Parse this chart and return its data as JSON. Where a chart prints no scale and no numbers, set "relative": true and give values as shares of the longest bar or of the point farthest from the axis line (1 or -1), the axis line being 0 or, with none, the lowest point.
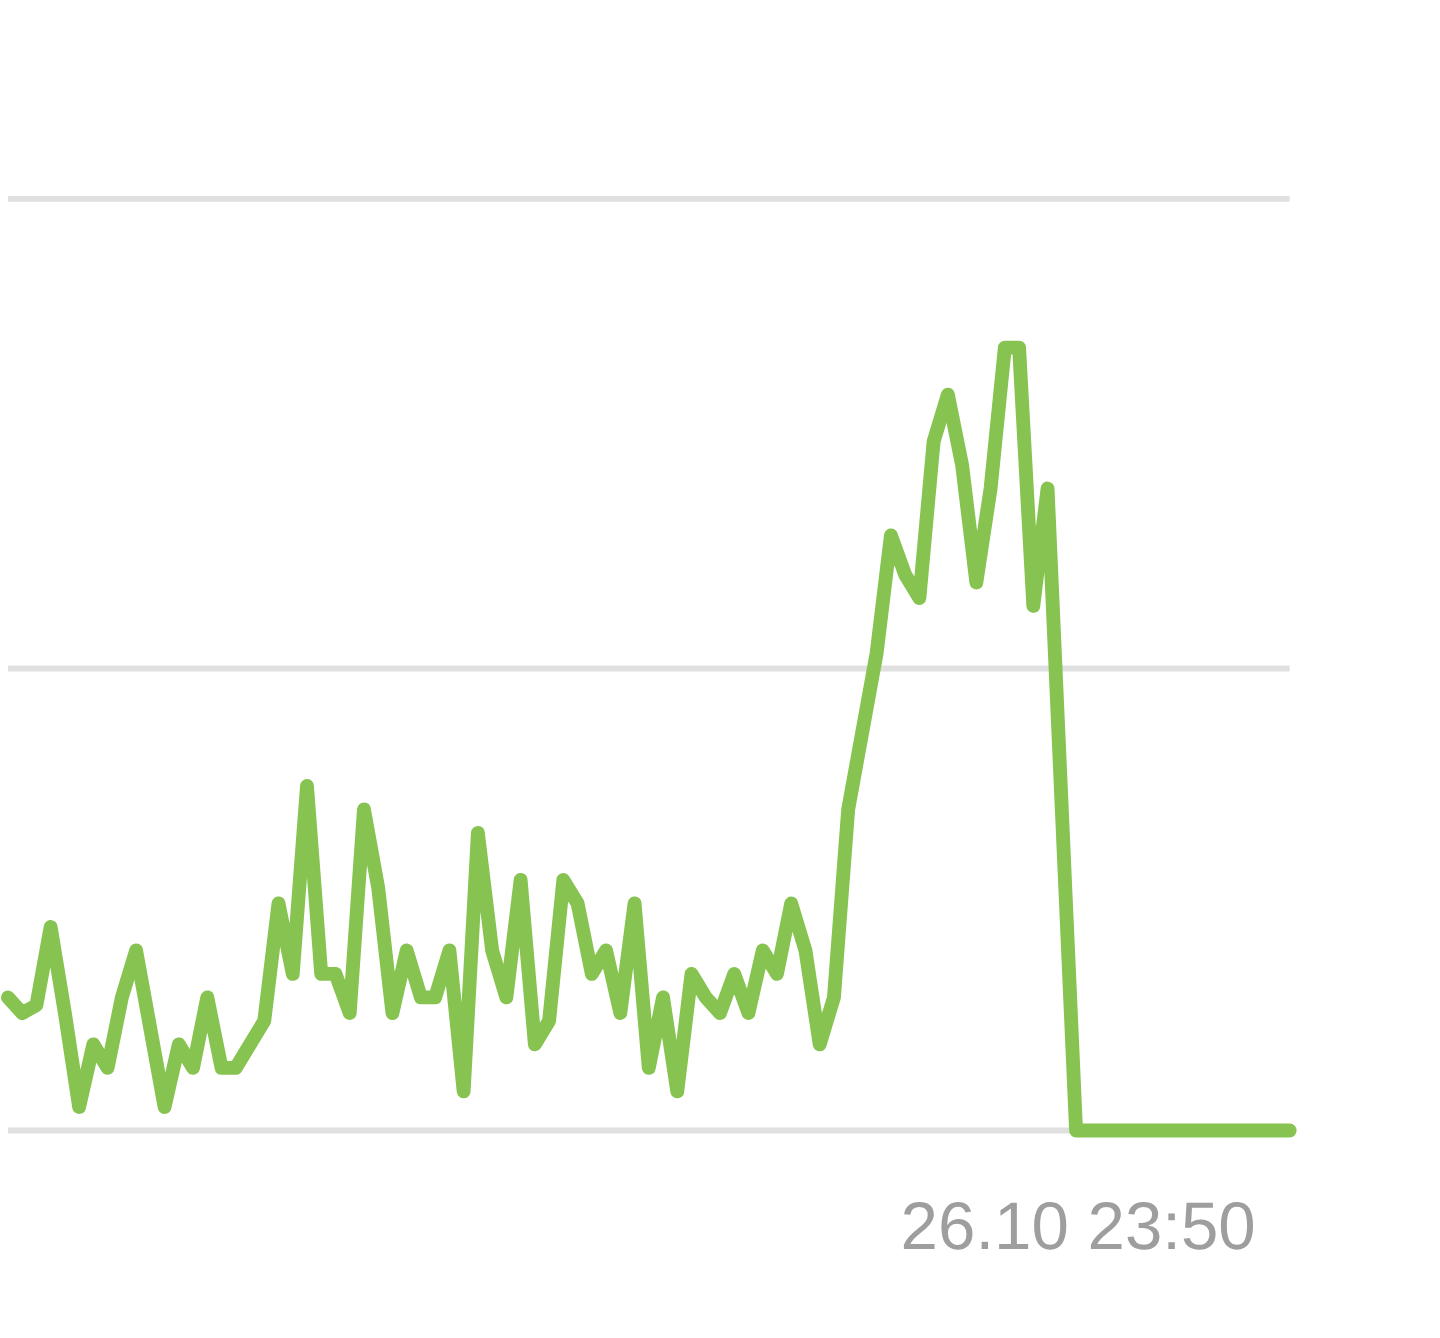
{
  "chart_data": {
    "type": "line",
    "relative": true,
    "marker": "none",
    "line_style": "solid",
    "ref_lines": [
      {
        "axis": "y",
        "value": 0,
        "color": "#e0e0e0"
      },
      {
        "axis": "y",
        "value": 0.59,
        "color": "#e0e0e0"
      },
      {
        "axis": "y",
        "value": 1.19,
        "color": "#e0e0e0"
      }
    ],
    "categories": [
      null,
      null,
      null,
      null,
      null,
      null,
      null,
      null,
      null,
      null,
      null,
      null,
      null,
      null,
      null,
      null,
      null,
      null,
      null,
      null,
      null,
      null,
      null,
      null,
      null,
      null,
      null,
      null,
      null,
      null,
      null,
      null,
      null,
      null,
      null,
      null,
      null,
      null,
      null,
      null,
      null,
      null,
      null,
      null,
      null,
      null,
      null,
      null,
      null,
      null,
      null,
      null,
      null,
      null,
      null,
      null,
      null,
      null,
      null,
      null,
      null,
      null,
      null,
      null,
      null,
      null,
      null,
      null,
      null,
      null,
      null,
      null,
      null,
      null,
      null,
      null,
      null,
      null,
      null,
      null,
      null,
      null,
      null,
      null,
      null,
      null,
      null,
      null,
      null,
      null,
      null
    ],
    "annotations": [
      "26.10 23:50"
    ],
    "series": [
      {
        "color": "#86c351",
        "values": [
          0.17,
          0.15,
          0.16,
          0.26,
          0.15,
          0.03,
          0.11,
          0.08,
          0.17,
          0.23,
          0.13,
          0.03,
          0.11,
          0.08,
          0.17,
          0.08,
          0.08,
          0.11,
          0.14,
          0.29,
          0.2,
          0.44,
          0.2,
          0.2,
          0.15,
          0.41,
          0.31,
          0.15,
          0.23,
          0.17,
          0.17,
          0.23,
          0.05,
          0.38,
          0.23,
          0.17,
          0.32,
          0.11,
          0.14,
          0.32,
          0.29,
          0.2,
          0.23,
          0.15,
          0.29,
          0.08,
          0.17,
          0.05,
          0.2,
          0.17,
          0.15,
          0.2,
          0.15,
          0.23,
          0.2,
          0.29,
          0.23,
          0.11,
          0.17,
          0.41,
          0.51,
          0.61,
          0.76,
          0.71,
          0.68,
          0.88,
          0.94,
          0.85,
          0.7,
          0.82,
          1,
          1,
          0.67,
          0.82,
          0.41,
          0,
          0,
          0,
          0,
          0,
          0,
          0,
          0,
          0,
          0,
          0,
          0,
          0,
          0,
          0,
          0
        ]
      }
    ]
  }
}
